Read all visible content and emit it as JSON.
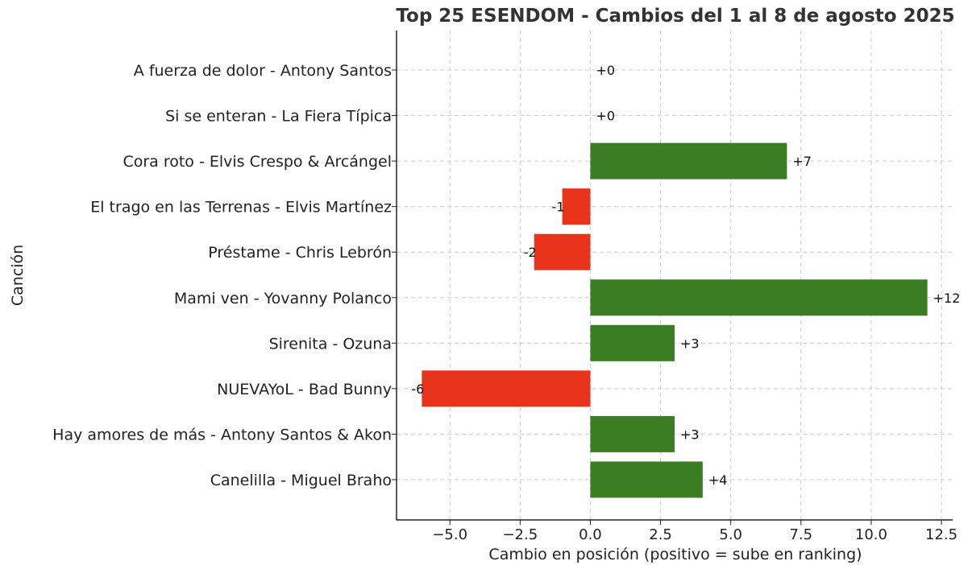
{
  "chart_data": {
    "type": "bar",
    "orientation": "horizontal",
    "title": "Top 25 ESENDOM - Cambios del 1 al 8 de agosto 2025",
    "xlabel": "Cambio en posición (positivo = sube en ranking)",
    "ylabel": "Canción",
    "categories": [
      "A fuerza de dolor - Antony Santos",
      "Si se enteran - La Fiera Típica",
      "Cora roto - Elvis Crespo & Arcángel",
      "El trago en las Terrenas - Elvis Martínez",
      "Préstame - Chris Lebrón",
      "Mami ven - Yovanny Polanco",
      "Sirenita - Ozuna",
      "NUEVAYoL - Bad Bunny",
      "Hay amores de más - Antony Santos & Akon",
      "Canelilla - Miguel Braho"
    ],
    "values": [
      0,
      0,
      7,
      -1,
      -2,
      12,
      3,
      -6,
      3,
      4
    ],
    "data_labels": [
      "+0",
      "+0",
      "+7",
      "-1",
      "-2",
      "+12",
      "+3",
      "-6",
      "+3",
      "+4"
    ],
    "xlim": [
      -6.9,
      12.9
    ],
    "xticks": [
      -5.0,
      -2.5,
      0.0,
      2.5,
      5.0,
      7.5,
      10.0,
      12.5
    ],
    "xtick_labels": [
      "−5.0",
      "−2.5",
      "0.0",
      "2.5",
      "5.0",
      "7.5",
      "10.0",
      "12.5"
    ],
    "grid": true,
    "colors": {
      "positive": "#3a7d22",
      "negative": "#e8341c",
      "grid": "#cccccc",
      "text": "#222222"
    }
  }
}
